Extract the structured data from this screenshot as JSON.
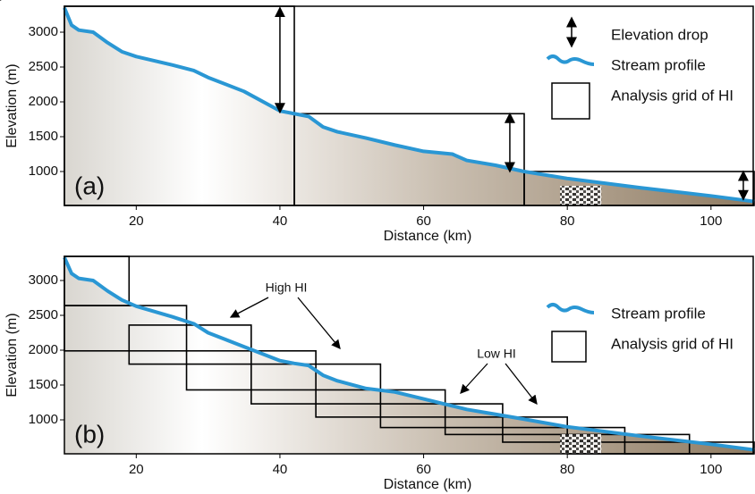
{
  "chart_data": [
    {
      "type": "line",
      "panel_label": "(a)",
      "xlabel": "Distance (km)",
      "ylabel": "Elevation (m)",
      "xlim": [
        10,
        106
      ],
      "ylim": [
        513,
        3372
      ],
      "xticks": [
        20,
        40,
        60,
        80,
        100
      ],
      "yticks": [
        1000,
        1500,
        2000,
        2500,
        3000
      ],
      "series": [
        {
          "name": "Stream profile",
          "color": "#2a97d4",
          "x": [
            10,
            11,
            12,
            14,
            16,
            18,
            20,
            25,
            28,
            30,
            35,
            40,
            42,
            44,
            46,
            48,
            52,
            56,
            60,
            64,
            66,
            70,
            74,
            80,
            90,
            100,
            106
          ],
          "values": [
            3350,
            3100,
            3030,
            3000,
            2850,
            2720,
            2650,
            2530,
            2450,
            2350,
            2150,
            1870,
            1830,
            1790,
            1640,
            1570,
            1480,
            1380,
            1290,
            1250,
            1160,
            1090,
            1000,
            900,
            770,
            650,
            570
          ]
        }
      ],
      "grid_boxes": {
        "name": "Analysis grid of HI",
        "boxes": [
          [
            10,
            42,
            513,
            3372
          ],
          [
            42,
            74,
            513,
            1830
          ],
          [
            74,
            106,
            513,
            1000
          ]
        ]
      },
      "elevation_drops": {
        "name": "Elevation drop",
        "drops": [
          [
            40,
            3350,
            1850
          ],
          [
            72,
            1830,
            1000
          ],
          [
            104.5,
            1000,
            600
          ]
        ]
      }
    },
    {
      "type": "line",
      "panel_label": "(b)",
      "xlabel": "Distance (km)",
      "ylabel": "Elevation (m)",
      "xlim": [
        10,
        106
      ],
      "ylim": [
        513,
        3346
      ],
      "xticks": [
        20,
        40,
        60,
        80,
        100
      ],
      "yticks": [
        1000,
        1500,
        2000,
        2500,
        3000
      ],
      "series": [
        {
          "name": "Stream profile",
          "color": "#2a97d4",
          "x": [
            10,
            11,
            12,
            14,
            16,
            18,
            20,
            25,
            28,
            30,
            35,
            40,
            42,
            44,
            46,
            48,
            52,
            56,
            60,
            64,
            66,
            70,
            74,
            80,
            90,
            100,
            106
          ],
          "values": [
            3330,
            3100,
            3030,
            3000,
            2850,
            2720,
            2630,
            2480,
            2380,
            2250,
            2050,
            1850,
            1810,
            1780,
            1640,
            1560,
            1450,
            1400,
            1300,
            1200,
            1150,
            1080,
            1010,
            900,
            770,
            650,
            570
          ]
        }
      ],
      "grid_boxes": {
        "name": "Analysis grid of HI",
        "boxes": [
          [
            10,
            19,
            2640,
            3346
          ],
          [
            10,
            27,
            1990,
            2640
          ],
          [
            19,
            36,
            1800,
            2360
          ],
          [
            27,
            45,
            1430,
            1990
          ],
          [
            36,
            54,
            1230,
            1800
          ],
          [
            45,
            63,
            1040,
            1430
          ],
          [
            54,
            71,
            890,
            1230
          ],
          [
            63,
            80,
            790,
            1040
          ],
          [
            71,
            88,
            680,
            890
          ],
          [
            80,
            97,
            513,
            790
          ],
          [
            88,
            106,
            513,
            680
          ]
        ]
      },
      "annotations": [
        "High HI",
        "Low HI"
      ]
    }
  ]
}
